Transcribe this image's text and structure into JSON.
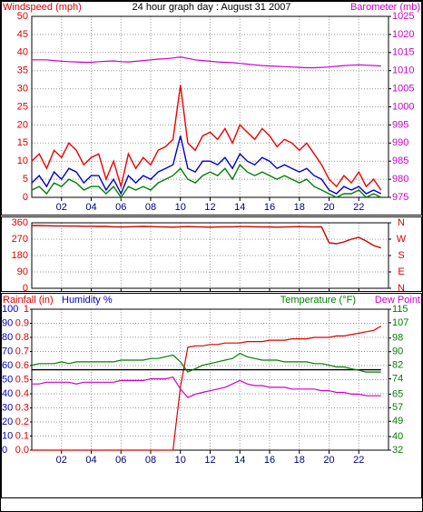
{
  "chart_data": [
    {
      "type": "line",
      "title": "24 hour graph day : August 31 2007",
      "ylabel": "Windspeed (mph)",
      "y2label": "Barometer (mb)",
      "axis_colors": {
        "y": "#dd0000",
        "y2": "#cc00cc"
      },
      "xlim": [
        0,
        24
      ],
      "xticks": [
        {
          "value": 2,
          "label": "02"
        },
        {
          "value": 4,
          "label": "04"
        },
        {
          "value": 6,
          "label": "06"
        },
        {
          "value": 8,
          "label": "08"
        },
        {
          "value": 10,
          "label": "10"
        },
        {
          "value": 12,
          "label": "12"
        },
        {
          "value": 14,
          "label": "14"
        },
        {
          "value": 16,
          "label": "16"
        },
        {
          "value": 18,
          "label": "18"
        },
        {
          "value": 20,
          "label": "20"
        },
        {
          "value": 22,
          "label": "22"
        }
      ],
      "ylim": [
        0,
        50
      ],
      "yticks": [
        0,
        5,
        10,
        15,
        20,
        25,
        30,
        35,
        40,
        45,
        50
      ],
      "y2lim": [
        975,
        1025
      ],
      "y2ticks": [
        975,
        980,
        985,
        990,
        995,
        1000,
        1005,
        1010,
        1015,
        1020,
        1025
      ],
      "grid": true,
      "x": [
        0,
        0.5,
        1,
        1.5,
        2,
        2.5,
        3,
        3.5,
        4,
        4.5,
        5,
        5.5,
        6,
        6.5,
        7,
        7.5,
        8,
        8.5,
        9,
        9.5,
        10,
        10.5,
        11,
        11.5,
        12,
        12.5,
        13,
        13.5,
        14,
        14.5,
        15,
        15.5,
        16,
        16.5,
        17,
        17.5,
        18,
        18.5,
        19,
        19.5,
        20,
        20.5,
        21,
        21.5,
        22,
        22.5,
        23,
        23.5
      ],
      "series": [
        {
          "color": "#ee0000",
          "values": [
            10,
            12,
            8,
            13,
            11,
            15,
            13,
            9,
            11,
            12,
            5,
            10,
            3,
            12,
            8,
            11,
            9,
            13,
            14,
            16,
            31,
            15,
            13,
            17,
            18,
            16,
            19,
            15,
            20,
            18,
            16,
            19,
            17,
            14,
            16,
            15,
            13,
            15,
            12,
            9,
            5,
            3,
            6,
            4,
            7,
            3,
            5,
            2
          ]
        },
        {
          "color": "#0000cc",
          "values": [
            4,
            6,
            3,
            7,
            5,
            8,
            7,
            4,
            6,
            6,
            2,
            5,
            1,
            6,
            4,
            6,
            5,
            7,
            8,
            9,
            17,
            8,
            7,
            10,
            10,
            9,
            11,
            8,
            12,
            10,
            9,
            11,
            10,
            8,
            9,
            8,
            7,
            8,
            6,
            5,
            2,
            1,
            3,
            2,
            3,
            1,
            2,
            1
          ]
        },
        {
          "color": "#008000",
          "values": [
            2,
            3,
            1,
            4,
            3,
            5,
            4,
            2,
            3,
            3,
            1,
            3,
            0,
            3,
            2,
            3,
            2,
            4,
            5,
            6,
            8,
            5,
            4,
            6,
            7,
            6,
            8,
            5,
            9,
            7,
            6,
            7,
            6,
            5,
            6,
            5,
            4,
            5,
            3,
            2,
            1,
            0,
            1,
            1,
            2,
            0,
            1,
            0
          ]
        },
        {
          "color": "#cc00cc",
          "axis": "y2",
          "values": [
            1013,
            1013,
            1013,
            1012.8,
            1012.6,
            1012.5,
            1012.4,
            1012.3,
            1012.3,
            1012.5,
            1012.6,
            1012.7,
            1012.5,
            1012.4,
            1012.6,
            1012.8,
            1013,
            1013.2,
            1013.3,
            1013.5,
            1013.8,
            1013.4,
            1013,
            1012.8,
            1012.6,
            1012.4,
            1012.3,
            1012.2,
            1012,
            1011.8,
            1011.6,
            1011.4,
            1011.3,
            1011.2,
            1011.1,
            1011,
            1010.9,
            1010.8,
            1010.8,
            1010.9,
            1011,
            1011.2,
            1011.4,
            1011.5,
            1011.6,
            1011.5,
            1011.4,
            1011.3
          ]
        }
      ]
    },
    {
      "type": "line",
      "axis_colors": {
        "y": "#dd0000",
        "y2": "#dd0000"
      },
      "xlim": [
        0,
        24
      ],
      "xticks": [
        2,
        4,
        6,
        8,
        10,
        12,
        14,
        16,
        18,
        20,
        22
      ],
      "ylim": [
        0,
        360
      ],
      "yticks": [
        0,
        90,
        180,
        270,
        360
      ],
      "y2lim": [
        0,
        360
      ],
      "y2ticks": [
        {
          "value": 0,
          "label": "N"
        },
        {
          "value": 90,
          "label": "E"
        },
        {
          "value": 180,
          "label": "S"
        },
        {
          "value": 270,
          "label": "W"
        },
        {
          "value": 360,
          "label": "N"
        }
      ],
      "grid": true,
      "x": [
        0,
        0.5,
        1,
        1.5,
        2,
        2.5,
        3,
        3.5,
        4,
        4.5,
        5,
        5.5,
        6,
        6.5,
        7,
        7.5,
        8,
        8.5,
        9,
        9.5,
        10,
        10.5,
        11,
        11.5,
        12,
        12.5,
        13,
        13.5,
        14,
        14.5,
        15,
        15.5,
        16,
        16.5,
        17,
        17.5,
        18,
        18.5,
        19,
        19.5,
        20,
        20.5,
        21,
        21.5,
        22,
        22.5,
        23,
        23.5
      ],
      "series": [
        {
          "color": "#cc0000",
          "values": [
            345,
            345,
            344,
            343,
            343,
            342,
            342,
            341,
            341,
            340,
            340,
            338,
            337,
            338,
            339,
            340,
            339,
            338,
            337,
            336,
            338,
            339,
            338,
            337,
            336,
            337,
            338,
            338,
            339,
            339,
            338,
            337,
            337,
            336,
            337,
            338,
            339,
            338,
            337,
            338,
            250,
            245,
            255,
            270,
            280,
            260,
            235,
            222
          ]
        }
      ]
    },
    {
      "type": "line",
      "ylabel": "Humidity %",
      "y3label": "Rainfall (in)",
      "y2labels": [
        "Temperature (°F)",
        "Dew Point"
      ],
      "axis_colors": {
        "y": "#0000cc",
        "y3": "#dd0000",
        "y2": "#008000",
        "y2b": "#cc00cc"
      },
      "xlim": [
        0,
        24
      ],
      "xticks": [
        {
          "value": 2,
          "label": "02"
        },
        {
          "value": 4,
          "label": "04"
        },
        {
          "value": 6,
          "label": "06"
        },
        {
          "value": 8,
          "label": "08"
        },
        {
          "value": 10,
          "label": "10"
        },
        {
          "value": 12,
          "label": "12"
        },
        {
          "value": 14,
          "label": "14"
        },
        {
          "value": 16,
          "label": "16"
        },
        {
          "value": 18,
          "label": "18"
        },
        {
          "value": 20,
          "label": "20"
        },
        {
          "value": 22,
          "label": "22"
        }
      ],
      "ylim": [
        0,
        100
      ],
      "yticks": [
        0,
        10,
        20,
        30,
        40,
        50,
        60,
        70,
        80,
        90,
        100
      ],
      "y3lim": [
        0,
        1
      ],
      "y3ticks": [
        {
          "value": 0,
          "label": "0.0"
        },
        0.1,
        0.2,
        0.3,
        0.4,
        0.5,
        0.6,
        0.7,
        0.8,
        0.9,
        1
      ],
      "y2lim": [
        32,
        115
      ],
      "y2ticks": [
        32,
        40,
        49,
        57,
        65,
        74,
        82,
        90,
        98,
        107,
        115
      ],
      "grid": true,
      "x": [
        0,
        0.5,
        1,
        1.5,
        2,
        2.5,
        3,
        3.5,
        4,
        4.5,
        5,
        5.5,
        6,
        6.5,
        7,
        7.5,
        8,
        8.5,
        9,
        9.5,
        10,
        10.5,
        11,
        11.5,
        12,
        12.5,
        13,
        13.5,
        14,
        14.5,
        15,
        15.5,
        16,
        16.5,
        17,
        17.5,
        18,
        18.5,
        19,
        19.5,
        20,
        20.5,
        21,
        21.5,
        22,
        22.5,
        23,
        23.5
      ],
      "series": [
        {
          "color": "#dd0000",
          "axis": "y3",
          "values": [
            0,
            0,
            0,
            0,
            0,
            0,
            0,
            0,
            0,
            0,
            0,
            0,
            0,
            0,
            0,
            0,
            0,
            0,
            0,
            0,
            0.45,
            0.73,
            0.74,
            0.74,
            0.75,
            0.75,
            0.76,
            0.76,
            0.76,
            0.77,
            0.77,
            0.77,
            0.78,
            0.78,
            0.78,
            0.79,
            0.79,
            0.79,
            0.8,
            0.8,
            0.8,
            0.81,
            0.81,
            0.82,
            0.83,
            0.84,
            0.85,
            0.88
          ]
        },
        {
          "color": "#000000",
          "values": [
            57,
            57,
            57,
            57,
            57,
            57,
            57,
            57,
            57,
            57,
            57,
            57,
            57,
            57,
            57,
            57,
            57,
            57,
            57,
            57,
            57,
            57,
            57,
            57,
            57,
            57,
            57,
            57,
            57,
            57,
            57,
            57,
            57,
            57,
            57,
            57,
            57,
            57,
            57,
            57,
            57,
            57,
            57,
            57,
            57,
            57,
            57,
            57
          ]
        },
        {
          "color": "#008000",
          "axis": "y2",
          "values": [
            82,
            83,
            83,
            83,
            84,
            83,
            84,
            84,
            84,
            84,
            84,
            84,
            85,
            85,
            85,
            85,
            86,
            86,
            87,
            88,
            84,
            78,
            80,
            82,
            83,
            84,
            85,
            86,
            89,
            87,
            86,
            85,
            85,
            85,
            84,
            84,
            84,
            84,
            83,
            83,
            82,
            81,
            81,
            80,
            79,
            78,
            78,
            78
          ]
        },
        {
          "color": "#cc00cc",
          "axis": "y2",
          "values": [
            71,
            71,
            72,
            72,
            72,
            72,
            71,
            72,
            72,
            72,
            72,
            72,
            73,
            73,
            73,
            73,
            74,
            74,
            74,
            75,
            68,
            63,
            65,
            66,
            67,
            68,
            69,
            71,
            73,
            71,
            70,
            70,
            69,
            69,
            69,
            68,
            68,
            68,
            68,
            67,
            67,
            66,
            66,
            65,
            65,
            64,
            64,
            64
          ]
        }
      ]
    }
  ]
}
